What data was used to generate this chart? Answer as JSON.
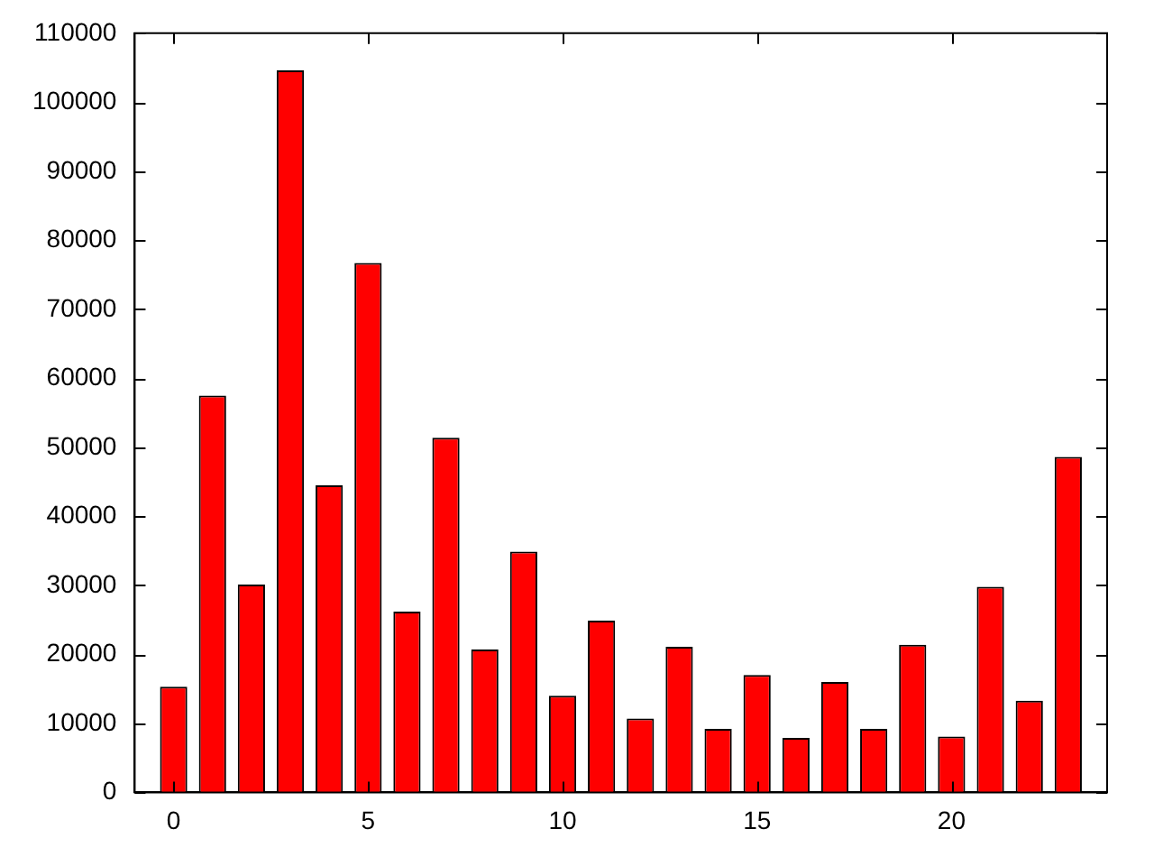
{
  "chart_data": {
    "type": "bar",
    "x": [
      0,
      1,
      2,
      3,
      4,
      5,
      6,
      7,
      8,
      9,
      10,
      11,
      12,
      13,
      14,
      15,
      16,
      17,
      18,
      19,
      20,
      21,
      22,
      23
    ],
    "values": [
      15300,
      57500,
      30100,
      104600,
      44500,
      76700,
      26200,
      51400,
      20700,
      34900,
      14000,
      24900,
      10700,
      21100,
      9200,
      17000,
      7900,
      16000,
      9200,
      21400,
      8100,
      29800,
      13300,
      48600
    ],
    "color": "#ff0000",
    "xlim": [
      -1,
      24
    ],
    "xticks": [
      0,
      5,
      10,
      15,
      20
    ],
    "ylim": [
      0,
      110000
    ],
    "yticks": [
      0,
      10000,
      20000,
      30000,
      40000,
      50000,
      60000,
      70000,
      80000,
      90000,
      100000,
      110000
    ],
    "grid": false,
    "legend": false
  }
}
